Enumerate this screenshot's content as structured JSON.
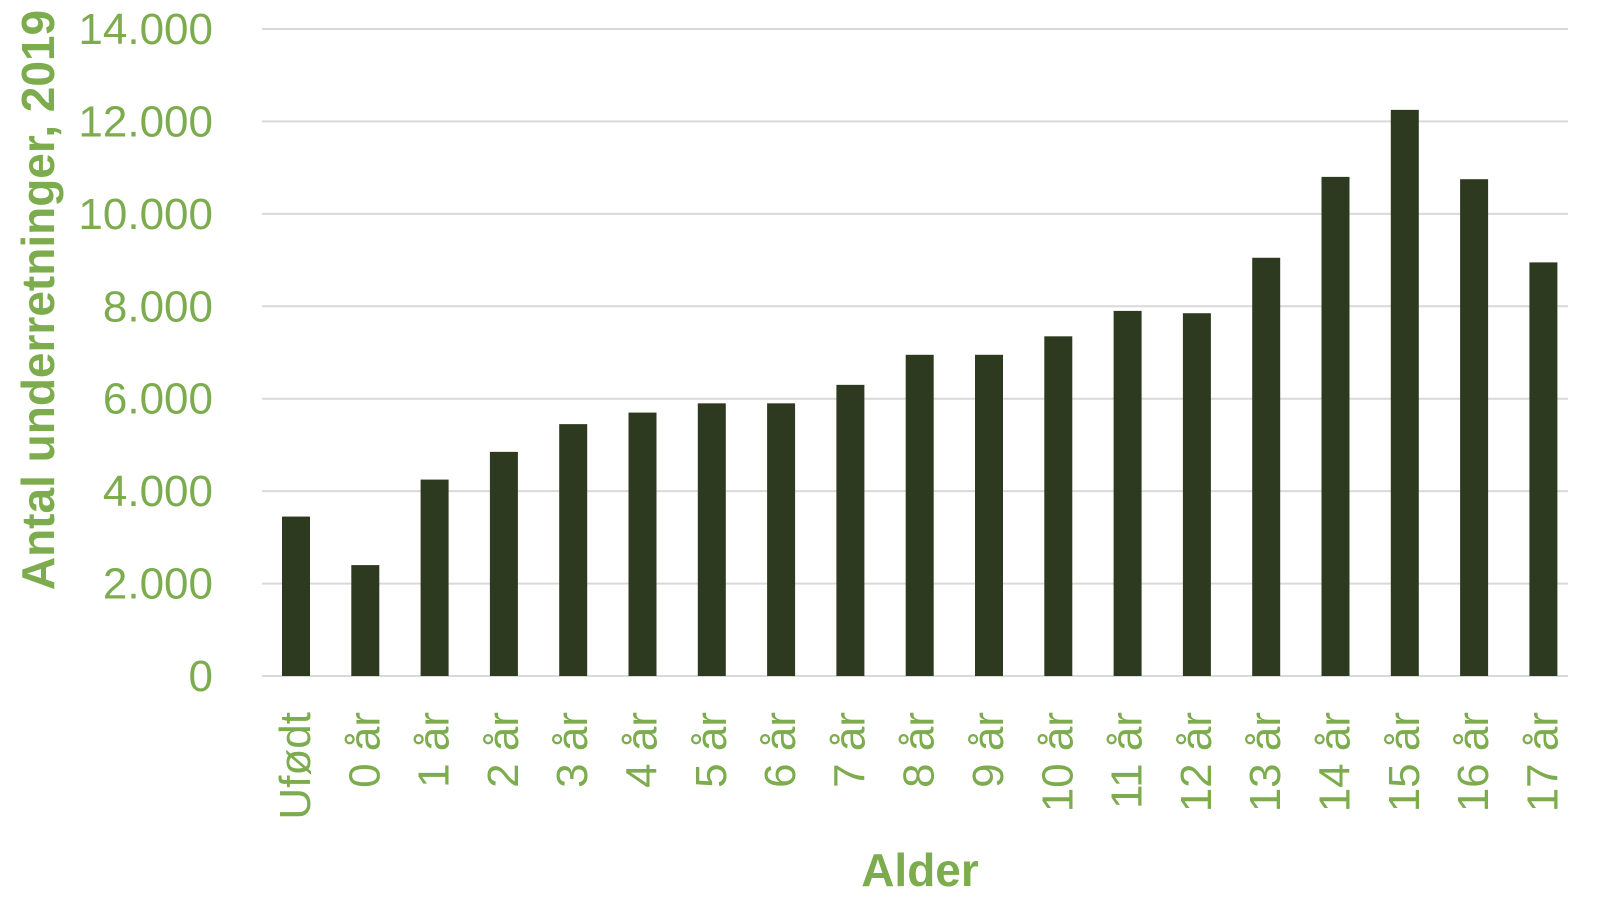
{
  "chart_data": {
    "type": "bar",
    "title": "",
    "xlabel": "Alder",
    "ylabel": "Antal underretninger, 2019",
    "categories": [
      "Ufødt",
      "0 år",
      "1 år",
      "2 år",
      "3 år",
      "4 år",
      "5 år",
      "6 år",
      "7 år",
      "8 år",
      "9 år",
      "10 år",
      "11 år",
      "12 år",
      "13 år",
      "14 år",
      "15 år",
      "16 år",
      "17 år"
    ],
    "values": [
      3450,
      2400,
      4250,
      4850,
      5450,
      5700,
      5900,
      5900,
      6300,
      6950,
      6950,
      7350,
      7900,
      7850,
      9050,
      10800,
      12250,
      10750,
      8950
    ],
    "ylim": [
      0,
      14000
    ],
    "yticks": [
      0,
      2000,
      4000,
      6000,
      8000,
      10000,
      12000,
      14000
    ],
    "ytick_labels": [
      "0",
      "2.000",
      "4.000",
      "6.000",
      "8.000",
      "10.000",
      "12.000",
      "14.000"
    ],
    "grid": true,
    "legend": "none",
    "colors": {
      "bar": "#2e3a1f",
      "text": "#7cac4e",
      "grid": "#d9d9d9"
    }
  }
}
